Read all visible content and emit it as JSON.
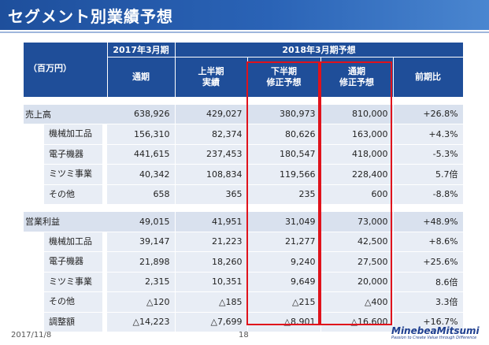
{
  "title": "セグメント別業績予想",
  "colors": {
    "header": "#1f4e99",
    "highlight": "#e0121b",
    "row_main": "#d9e1ee",
    "row_sub": "#e8edf5"
  },
  "table": {
    "unit_label": "（百万円）",
    "group_2017": "2017年3月期",
    "group_2018": "2018年3月期予想",
    "col_full_year": "通期",
    "col_h1_line1": "上半期",
    "col_h1_line2": "実績",
    "col_h2_line1": "下半期",
    "col_h2_line2": "修正予想",
    "col_fy_line1": "通期",
    "col_fy_line2": "修正予想",
    "col_yoy": "前期比",
    "sales_rows": [
      {
        "label": "売上高",
        "fy2017": "638,926",
        "h1": "429,027",
        "h2": "380,973",
        "fy": "810,000",
        "yoy": "+26.8%"
      },
      {
        "label": "機械加工品",
        "fy2017": "156,310",
        "h1": "82,374",
        "h2": "80,626",
        "fy": "163,000",
        "yoy": "+4.3%"
      },
      {
        "label": "電子機器",
        "fy2017": "441,615",
        "h1": "237,453",
        "h2": "180,547",
        "fy": "418,000",
        "yoy": "-5.3%"
      },
      {
        "label": "ミツミ事業",
        "fy2017": "40,342",
        "h1": "108,834",
        "h2": "119,566",
        "fy": "228,400",
        "yoy": "5.7倍"
      },
      {
        "label": "その他",
        "fy2017": "658",
        "h1": "365",
        "h2": "235",
        "fy": "600",
        "yoy": "-8.8%"
      }
    ],
    "profit_rows": [
      {
        "label": "営業利益",
        "fy2017": "49,015",
        "h1": "41,951",
        "h2": "31,049",
        "fy": "73,000",
        "yoy": "+48.9%"
      },
      {
        "label": "機械加工品",
        "fy2017": "39,147",
        "h1": "21,223",
        "h2": "21,277",
        "fy": "42,500",
        "yoy": "+8.6%"
      },
      {
        "label": "電子機器",
        "fy2017": "21,898",
        "h1": "18,260",
        "h2": "9,240",
        "fy": "27,500",
        "yoy": "+25.6%"
      },
      {
        "label": "ミツミ事業",
        "fy2017": "2,315",
        "h1": "10,351",
        "h2": "9,649",
        "fy": "20,000",
        "yoy": "8.6倍"
      },
      {
        "label": "その他",
        "fy2017": "△120",
        "h1": "△185",
        "h2": "△215",
        "fy": "△400",
        "yoy": "3.3倍"
      },
      {
        "label": "調整額",
        "fy2017": "△14,223",
        "h1": "△7,699",
        "h2": "△8,901",
        "fy": "△16,600",
        "yoy": "+16.7%"
      }
    ]
  },
  "footer": {
    "date": "2017/11/8",
    "page": "18",
    "logo_name": "MinebeaMitsumi",
    "logo_tagline": "Passion to Create Value through Difference"
  }
}
